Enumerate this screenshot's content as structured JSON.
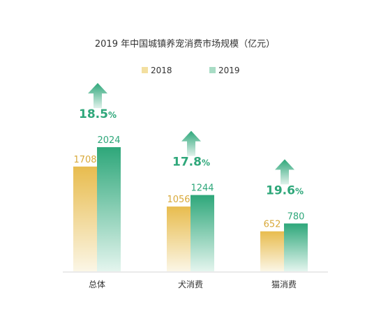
{
  "chart_data": {
    "type": "bar",
    "title": "2019 年中国城镇养宠消费市场规模（亿元）",
    "categories": [
      "总体",
      "犬消费",
      "猫消费"
    ],
    "series": [
      {
        "name": "2018",
        "values": [
          1708,
          1056,
          652
        ]
      },
      {
        "name": "2019",
        "values": [
          2024,
          1244,
          780
        ]
      }
    ],
    "growth_labels": [
      "18.5",
      "17.8",
      "19.6"
    ],
    "growth_unit": "%",
    "xlabel": "",
    "ylabel": "",
    "ylim": [
      0,
      2024
    ],
    "grid": false,
    "legend_position": "top-center"
  },
  "colors": {
    "series_2018": "#e8bc4e",
    "series_2018_light": "#f7ecc6",
    "series_2019": "#2ea77a",
    "series_2019_light": "#cdeee0",
    "growth": "#2ea77a",
    "axis": "#cfcfcf",
    "text": "#333333",
    "label_2018": "#d8a93a"
  }
}
